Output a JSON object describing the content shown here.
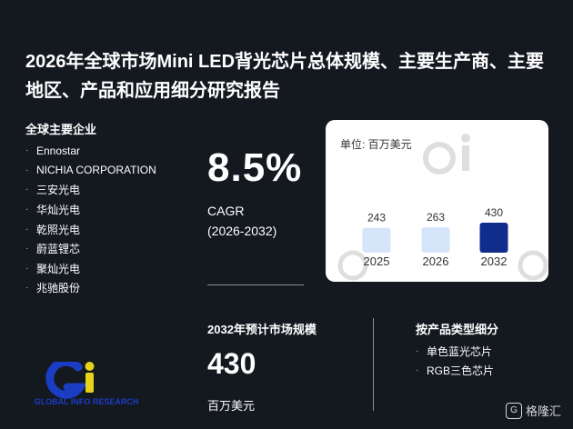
{
  "title": "2026年全球市场Mini LED背光芯片总体规模、主要生产商、主要地区、产品和应用细分研究报告",
  "companies": {
    "heading": "全球主要企业",
    "items": [
      "Ennostar",
      "NICHIA CORPORATION",
      "三安光电",
      "华灿光电",
      "乾照光电",
      "蔚蓝锂芯",
      "聚灿光电",
      "兆驰股份"
    ]
  },
  "cagr": {
    "value": "8.5%",
    "label": "CAGR",
    "period": "(2026-2032)"
  },
  "chart": {
    "unit": "单位: 百万美元"
  },
  "chart_data": {
    "type": "bar",
    "categories": [
      "2025",
      "2026",
      "2032"
    ],
    "values": [
      243,
      263,
      430
    ],
    "colors": [
      "#d5e6fb",
      "#d5e6fb",
      "#112d8c"
    ]
  },
  "market": {
    "heading": "2032年预计市场规模",
    "value": "430",
    "unit": "百万美元"
  },
  "segments": {
    "heading": "按产品类型细分",
    "items": [
      "单色蓝光芯片",
      "RGB三色芯片"
    ]
  },
  "logo": {
    "text": "GLOBAL INFO RESEARCH",
    "colors": {
      "blue": "#1a3dc4",
      "yellow": "#e7d21a"
    }
  },
  "watermark": {
    "label": "格隆汇"
  }
}
